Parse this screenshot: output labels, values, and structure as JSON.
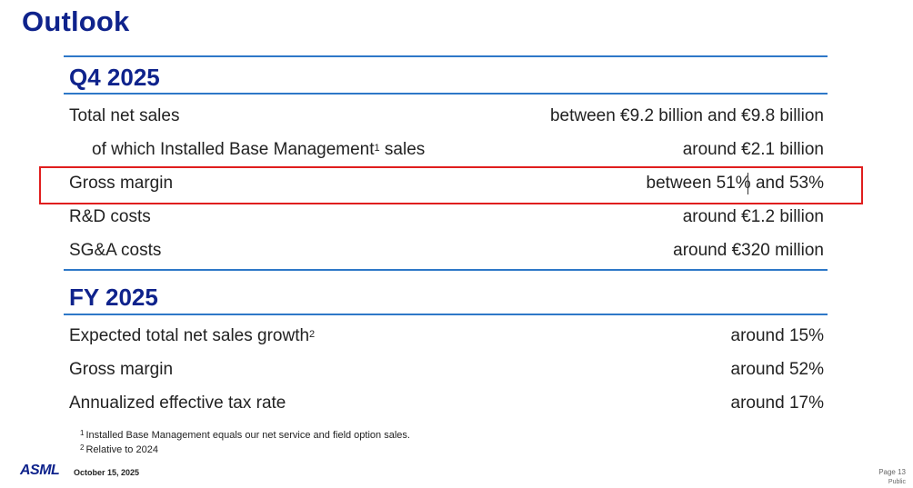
{
  "title": "Outlook",
  "q4": {
    "heading": "Q4 2025",
    "rows": [
      {
        "label": "Total net sales",
        "value": "between €9.2 billion and €9.8 billion"
      },
      {
        "label": "of which Installed Base Management",
        "sup": "1",
        "label_suffix": " sales",
        "value": "around €2.1 billion"
      },
      {
        "label": "Gross margin",
        "value_a": "between 51%",
        "value_b": " and 53%"
      },
      {
        "label": "R&D costs",
        "value": "around €1.2 billion"
      },
      {
        "label": "SG&A costs",
        "value": "around €320 million"
      }
    ]
  },
  "fy": {
    "heading": "FY 2025",
    "rows": [
      {
        "label": "Expected total net sales growth",
        "sup": "2",
        "value": "around 15%"
      },
      {
        "label": "Gross margin",
        "value": "around 52%"
      },
      {
        "label": "Annualized effective tax rate",
        "value": "around 17%"
      }
    ]
  },
  "footnotes": [
    {
      "mark": "1",
      "text": "Installed Base Management equals our net service and field option sales."
    },
    {
      "mark": "2",
      "text": "Relative to 2024"
    }
  ],
  "footer": {
    "logo": "ASML",
    "date": "October 15, 2025",
    "page": "Page 13",
    "classification": "Public"
  },
  "colors": {
    "title": "#0f238c",
    "rule": "#2e78c8",
    "highlight_box": "#e01e1e"
  }
}
